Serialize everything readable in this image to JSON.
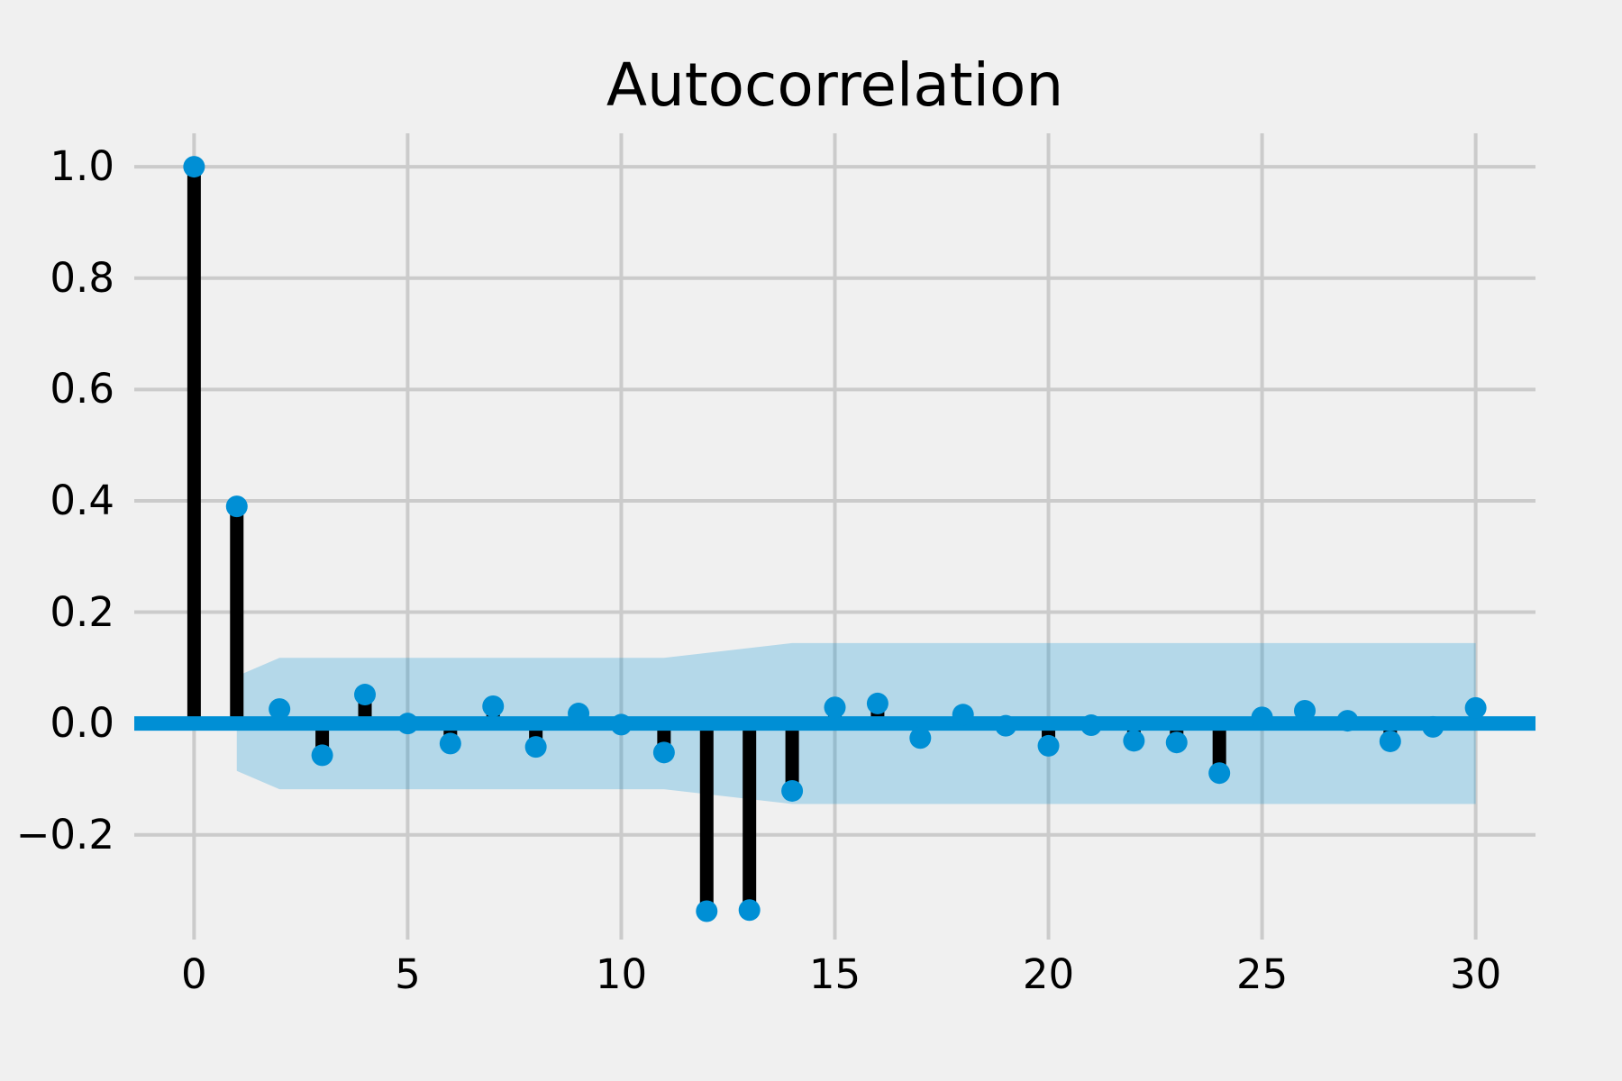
{
  "chart_data": {
    "type": "stem",
    "title": "Autocorrelation",
    "xlabel": "",
    "ylabel": "",
    "grid": true,
    "legend": null,
    "xlim": [
      -1.4,
      31.4
    ],
    "ylim": [
      -0.388,
      1.06
    ],
    "x_ticks": [
      {
        "v": 0,
        "label": "0"
      },
      {
        "v": 5,
        "label": "5"
      },
      {
        "v": 10,
        "label": "10"
      },
      {
        "v": 15,
        "label": "15"
      },
      {
        "v": 20,
        "label": "20"
      },
      {
        "v": 25,
        "label": "25"
      },
      {
        "v": 30,
        "label": "30"
      }
    ],
    "y_ticks": [
      {
        "v": 1.0,
        "label": "1.0"
      },
      {
        "v": 0.8,
        "label": "0.8"
      },
      {
        "v": 0.6,
        "label": "0.6"
      },
      {
        "v": 0.4,
        "label": "0.4"
      },
      {
        "v": 0.2,
        "label": "0.2"
      },
      {
        "v": 0.0,
        "label": "0.0"
      },
      {
        "v": -0.2,
        "label": "−0.2"
      }
    ],
    "lags": [
      0,
      1,
      2,
      3,
      4,
      5,
      6,
      7,
      8,
      9,
      10,
      11,
      12,
      13,
      14,
      15,
      16,
      17,
      18,
      19,
      20,
      21,
      22,
      23,
      24,
      25,
      26,
      27,
      28,
      29,
      30
    ],
    "acf_values": [
      1.0,
      0.39,
      0.026,
      -0.057,
      0.052,
      0.0,
      -0.036,
      0.031,
      -0.042,
      0.018,
      -0.002,
      -0.052,
      -0.337,
      -0.335,
      -0.121,
      0.029,
      0.036,
      -0.026,
      0.016,
      -0.004,
      -0.04,
      -0.003,
      -0.031,
      -0.034,
      -0.089,
      0.011,
      0.023,
      0.005,
      -0.032,
      -0.006,
      0.028
    ],
    "confidence_band": [
      {
        "lag": 1,
        "lo": -0.085,
        "hi": 0.085
      },
      {
        "lag": 2,
        "lo": -0.118,
        "hi": 0.118
      },
      {
        "lag": 11,
        "lo": -0.118,
        "hi": 0.118
      },
      {
        "lag": 14,
        "lo": -0.1445,
        "hi": 0.1445
      },
      {
        "lag": 30,
        "lo": -0.1445,
        "hi": 0.1445
      }
    ],
    "colors": {
      "background": "#f0f0f0",
      "grid": "#cbcbcb",
      "stem": "#000000",
      "accent_blue": "#008fd5",
      "band_fill": "rgba(0,143,213,0.25)",
      "text": "#000000"
    }
  }
}
